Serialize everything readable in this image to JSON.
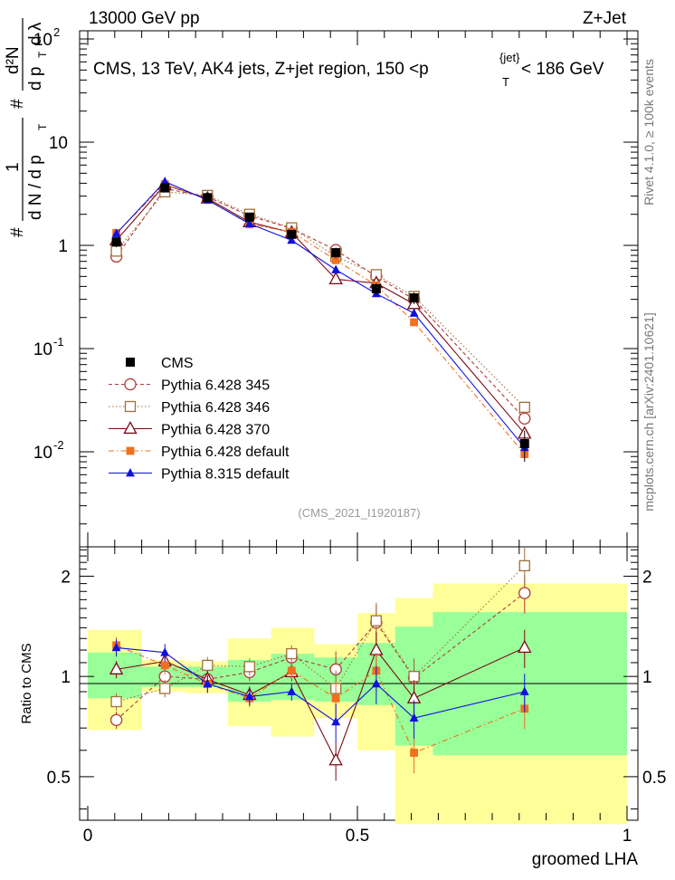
{
  "header": {
    "energy": "13000 GeV pp",
    "process": "Z+Jet",
    "side_label": "Rivet 4.1.0, ≥ 100k events",
    "side_label2": "mcplots.cern.ch [arXiv:2401.10621]"
  },
  "chart_data": {
    "type": "line",
    "title": "CMS, 13 TeV, AK4 jets, Z+jet region, 150 <p_T^{jet}< 186 GeV",
    "title_parts": {
      "main": "CMS, 13 TeV, AK4 jets, Z+jet region, 150 <p",
      "sub": "T",
      "sup": "{jet}",
      "tail": "< 186 GeV"
    },
    "analysis_id": "(CMS_2021_I1920187)",
    "xlabel": "groomed LHA",
    "ylabel_parts": {
      "hash": "#",
      "one": "1",
      "dndpt": "d N / d p",
      "t": "T",
      "d2n": "d²N",
      "dpt": "d p",
      "dl": "d λ"
    },
    "ratio_ylabel": "Ratio to CMS",
    "x_ticks": [
      "0",
      "0.5",
      "1"
    ],
    "upper_y_ticks": [
      {
        "base": "10",
        "exp": "-2",
        "value": 0.01
      },
      {
        "base": "10",
        "exp": "-1",
        "value": 0.1
      },
      {
        "base": "1",
        "exp": "",
        "value": 1
      },
      {
        "base": "10",
        "exp": "",
        "value": 10
      },
      {
        "base": "10",
        "exp": "2",
        "value": 100
      }
    ],
    "ratio_y_ticks": [
      "0.5",
      "1",
      "2"
    ],
    "xlim": [
      0,
      1
    ],
    "ylim_upper": [
      0.0012,
      120
    ],
    "ylim_ratio": [
      0.37,
      2.45
    ],
    "x": [
      0.053,
      0.143,
      0.222,
      0.3,
      0.378,
      0.46,
      0.535,
      0.605,
      0.81
    ],
    "bin_edges": [
      0.0,
      0.1,
      0.18,
      0.26,
      0.34,
      0.42,
      0.5,
      0.57,
      0.64,
      1.0
    ],
    "data": {
      "name": "CMS",
      "values": [
        1.08,
        3.6,
        2.9,
        1.88,
        1.28,
        0.85,
        0.38,
        0.31,
        0.012
      ],
      "errors": [
        0.12,
        0.25,
        0.2,
        0.16,
        0.12,
        0.1,
        0.05,
        0.04,
        0.004
      ],
      "ratio_band_inner": [
        [
          0.86,
          1.18
        ],
        [
          0.93,
          1.07
        ],
        [
          0.93,
          1.07
        ],
        [
          0.84,
          1.12
        ],
        [
          0.85,
          1.17
        ],
        [
          0.84,
          1.14
        ],
        [
          0.82,
          1.26
        ],
        [
          0.62,
          1.41
        ],
        [
          0.58,
          1.56
        ]
      ],
      "ratio_band_outer": [
        [
          0.69,
          1.38
        ],
        [
          0.9,
          1.12
        ],
        [
          0.89,
          1.11
        ],
        [
          0.71,
          1.3
        ],
        [
          0.66,
          1.4
        ],
        [
          0.75,
          1.25
        ],
        [
          0.6,
          1.55
        ],
        [
          0.36,
          1.72
        ],
        [
          0.36,
          1.9
        ]
      ]
    },
    "series": [
      {
        "name": "Pythia 6.428 345",
        "color": "#b03a3a",
        "marker": "open-circle",
        "dash": "4,3",
        "values": [
          0.78,
          3.55,
          2.95,
          1.93,
          1.46,
          0.9,
          0.5,
          0.3,
          0.021
        ],
        "ratio": [
          0.74,
          1.0,
          0.98,
          1.03,
          1.14,
          1.05,
          1.45,
          0.99,
          1.78
        ]
      },
      {
        "name": "Pythia 6.428 346",
        "color": "#a0703a",
        "marker": "open-square",
        "dash": "1.5,2.5",
        "values": [
          0.88,
          3.3,
          3.05,
          2.0,
          1.48,
          0.78,
          0.52,
          0.32,
          0.027
        ],
        "ratio": [
          0.84,
          0.92,
          1.08,
          1.07,
          1.17,
          0.92,
          1.47,
          1.0,
          2.15
        ]
      },
      {
        "name": "Pythia 6.428 370",
        "color": "#7a0a14",
        "marker": "open-triangle",
        "dash": "",
        "values": [
          1.12,
          3.85,
          2.85,
          1.68,
          1.33,
          0.47,
          0.43,
          0.27,
          0.015
        ],
        "ratio": [
          1.05,
          1.11,
          0.98,
          0.88,
          1.03,
          0.56,
          1.2,
          0.86,
          1.22
        ]
      },
      {
        "name": "Pythia 6.428 default",
        "color": "#f07020",
        "marker": "filled-square",
        "dash": "6,3,1.5,3",
        "values": [
          1.32,
          3.9,
          2.8,
          1.6,
          1.35,
          0.72,
          0.41,
          0.18,
          0.0095
        ],
        "ratio": [
          1.24,
          1.08,
          0.95,
          0.86,
          1.04,
          0.86,
          1.04,
          0.59,
          0.8
        ]
      },
      {
        "name": "Pythia 8.315 default",
        "color": "#1010e0",
        "marker": "filled-triangle",
        "dash": "",
        "values": [
          1.3,
          4.15,
          2.75,
          1.62,
          1.12,
          0.58,
          0.34,
          0.22,
          0.011
        ],
        "ratio": [
          1.22,
          1.18,
          0.95,
          0.87,
          0.9,
          0.73,
          0.95,
          0.75,
          0.9
        ]
      }
    ]
  }
}
